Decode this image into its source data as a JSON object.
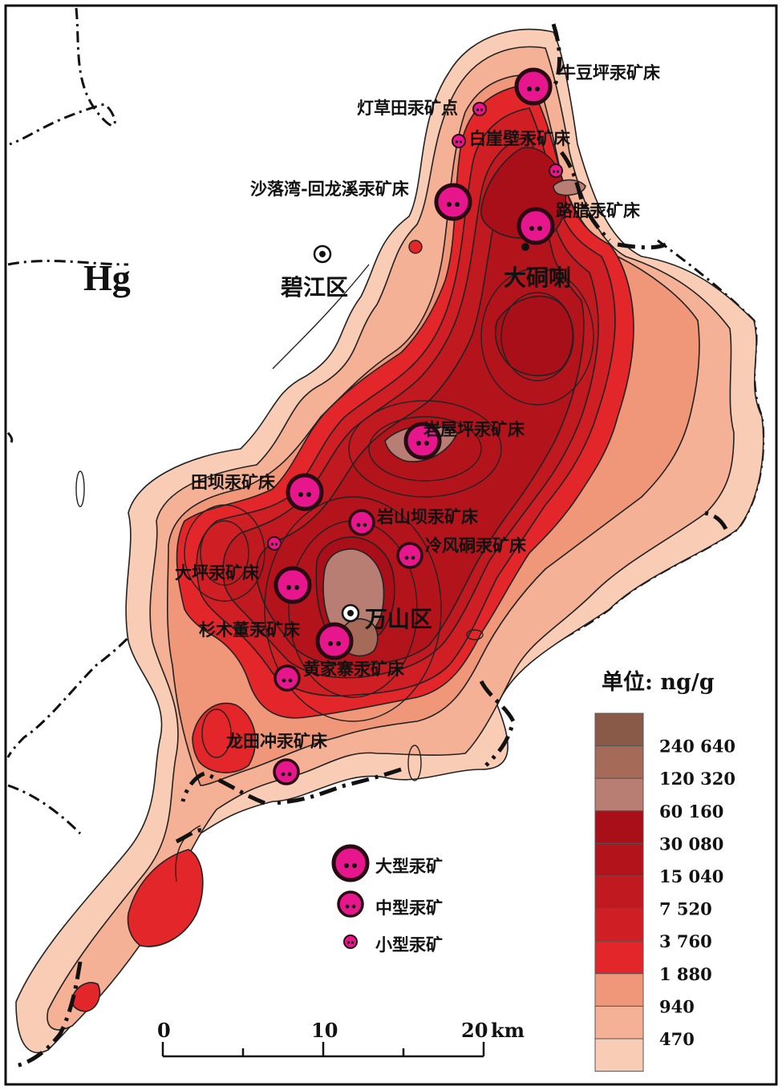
{
  "element_symbol": "Hg",
  "places": {
    "bijiang": "碧江区",
    "wanshan": "万山区",
    "datongla": "大硐喇"
  },
  "deposits": [
    {
      "name": "牛豆坪汞矿床",
      "size": "large"
    },
    {
      "name": "灯草田汞矿点",
      "size": "small"
    },
    {
      "name": "白崖壁汞矿床",
      "size": "small"
    },
    {
      "name": "沙落湾-回龙溪汞矿床",
      "size": "large"
    },
    {
      "name": "路腊汞矿床",
      "size": "large"
    },
    {
      "name": "岩屋坪汞矿床",
      "size": "large"
    },
    {
      "name": "田坝汞矿床",
      "size": "large"
    },
    {
      "name": "岩山坝汞矿床",
      "size": "medium"
    },
    {
      "name": "冷风硐汞矿床",
      "size": "medium"
    },
    {
      "name": "大坪汞矿床",
      "size": "large"
    },
    {
      "name": "杉木董汞矿床",
      "size": "large"
    },
    {
      "name": "黄家寨汞矿床",
      "size": "medium"
    },
    {
      "name": "龙田冲汞矿床",
      "size": "medium"
    }
  ],
  "legend": {
    "large": "大型汞矿",
    "medium": "中型汞矿",
    "small": "小型汞矿"
  },
  "color_scale": {
    "unit": "单位: ng/g",
    "classes": [
      {
        "label": "",
        "color": "#8a5a48"
      },
      {
        "label": "240 640",
        "color": "#a56a58"
      },
      {
        "label": "120 320",
        "color": "#b87e74"
      },
      {
        "label": "60 160",
        "color": "#a80f18"
      },
      {
        "label": "30 080",
        "color": "#b3141c"
      },
      {
        "label": "15 040",
        "color": "#c01a20"
      },
      {
        "label": "7 520",
        "color": "#cf1e24"
      },
      {
        "label": "3 760",
        "color": "#e2262a"
      },
      {
        "label": "1 880",
        "color": "#f0977a"
      },
      {
        "label": "940",
        "color": "#f5b196"
      },
      {
        "label": "470",
        "color": "#f9ccb6"
      }
    ]
  },
  "scale_bar": {
    "ticks": [
      "0",
      "10",
      "20"
    ],
    "unit": "km"
  },
  "colors": {
    "deposit_fill": "#e8168c",
    "deposit_outline": "#2a0a12"
  }
}
